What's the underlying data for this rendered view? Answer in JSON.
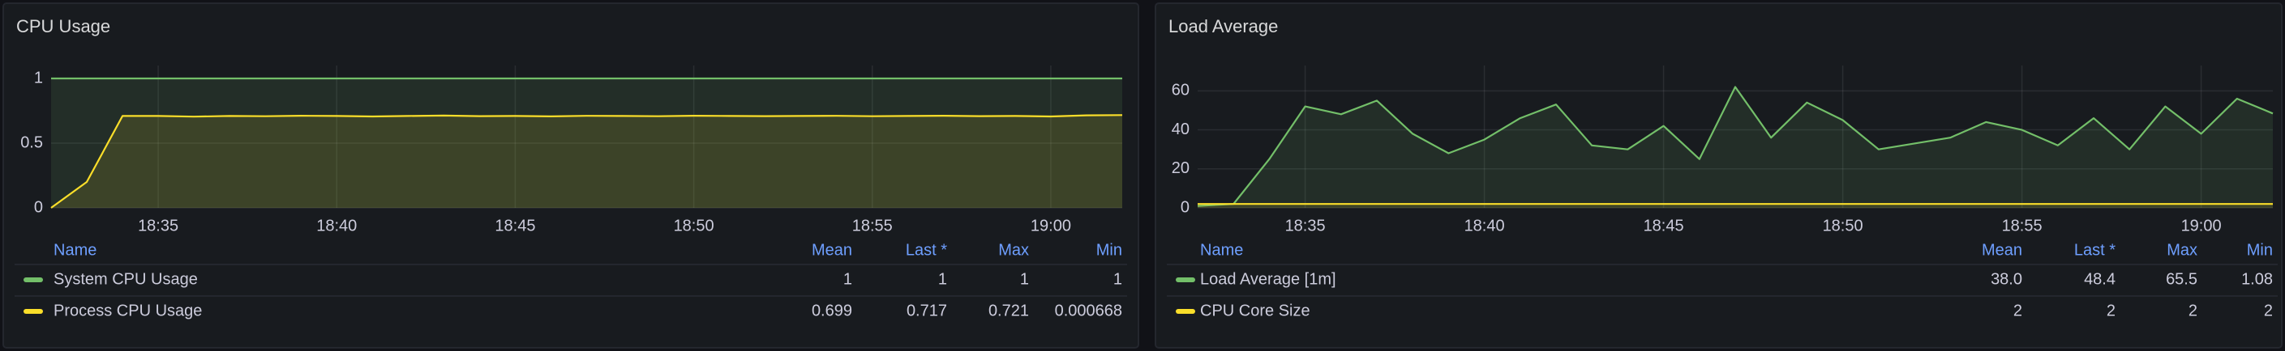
{
  "chart_data": [
    {
      "type": "line",
      "title": "CPU Usage",
      "x": [
        "18:32",
        "18:33",
        "18:34",
        "18:35",
        "18:36",
        "18:37",
        "18:38",
        "18:39",
        "18:40",
        "18:41",
        "18:42",
        "18:43",
        "18:44",
        "18:45",
        "18:46",
        "18:47",
        "18:48",
        "18:49",
        "18:50",
        "18:51",
        "18:52",
        "18:53",
        "18:54",
        "18:55",
        "18:56",
        "18:57",
        "18:58",
        "18:59",
        "19:00",
        "19:01",
        "19:02"
      ],
      "xlim": [
        "18:32",
        "19:02"
      ],
      "xticks": [
        "18:35",
        "18:40",
        "18:45",
        "18:50",
        "18:55",
        "19:00"
      ],
      "ylim": [
        0,
        1.1
      ],
      "yticks": [
        0,
        0.5,
        1
      ],
      "grid": true,
      "legend": {
        "columns": [
          "Name",
          "Mean",
          "Last *",
          "Max",
          "Min"
        ]
      },
      "series": [
        {
          "name": "System CPU Usage",
          "color": "#73bf69",
          "values": [
            1,
            1,
            1,
            1,
            1,
            1,
            1,
            1,
            1,
            1,
            1,
            1,
            1,
            1,
            1,
            1,
            1,
            1,
            1,
            1,
            1,
            1,
            1,
            1,
            1,
            1,
            1,
            1,
            1,
            1,
            1
          ],
          "stats": [
            1,
            1,
            1,
            1
          ]
        },
        {
          "name": "Process CPU Usage",
          "color": "#fade2a",
          "values": [
            0,
            0.2,
            0.71,
            0.71,
            0.705,
            0.71,
            0.708,
            0.712,
            0.71,
            0.706,
            0.71,
            0.713,
            0.709,
            0.71,
            0.707,
            0.711,
            0.71,
            0.708,
            0.712,
            0.71,
            0.709,
            0.71,
            0.711,
            0.708,
            0.71,
            0.712,
            0.709,
            0.71,
            0.706,
            0.715,
            0.717
          ],
          "stats": [
            0.699,
            0.717,
            0.721,
            0.000668
          ]
        }
      ]
    },
    {
      "type": "line",
      "title": "Load Average",
      "x": [
        "18:32",
        "18:33",
        "18:34",
        "18:35",
        "18:36",
        "18:37",
        "18:38",
        "18:39",
        "18:40",
        "18:41",
        "18:42",
        "18:43",
        "18:44",
        "18:45",
        "18:46",
        "18:47",
        "18:48",
        "18:49",
        "18:50",
        "18:51",
        "18:52",
        "18:53",
        "18:54",
        "18:55",
        "18:56",
        "18:57",
        "18:58",
        "18:59",
        "19:00",
        "19:01",
        "19:02"
      ],
      "xlim": [
        "18:32",
        "19:02"
      ],
      "xticks": [
        "18:35",
        "18:40",
        "18:45",
        "18:50",
        "18:55",
        "19:00"
      ],
      "ylim": [
        0,
        73
      ],
      "yticks": [
        0,
        20,
        40,
        60
      ],
      "grid": true,
      "legend": {
        "columns": [
          "Name",
          "Mean",
          "Last *",
          "Max",
          "Min"
        ]
      },
      "series": [
        {
          "name": "Load Average [1m]",
          "color": "#73bf69",
          "values": [
            1,
            2,
            25,
            52,
            48,
            55,
            38,
            28,
            35,
            46,
            53,
            32,
            30,
            42,
            25,
            62,
            36,
            54,
            45,
            30,
            33,
            36,
            44,
            40,
            32,
            46,
            30,
            52,
            38,
            56,
            48.4
          ],
          "stats": [
            {
              "value": 38,
              "label": "38.0"
            },
            48.4,
            65.5,
            1.08
          ]
        },
        {
          "name": "CPU Core Size",
          "color": "#fade2a",
          "values": [
            2,
            2,
            2,
            2,
            2,
            2,
            2,
            2,
            2,
            2,
            2,
            2,
            2,
            2,
            2,
            2,
            2,
            2,
            2,
            2,
            2,
            2,
            2,
            2,
            2,
            2,
            2,
            2,
            2,
            2,
            2
          ],
          "stats": [
            2,
            2,
            2,
            2
          ]
        }
      ]
    }
  ]
}
